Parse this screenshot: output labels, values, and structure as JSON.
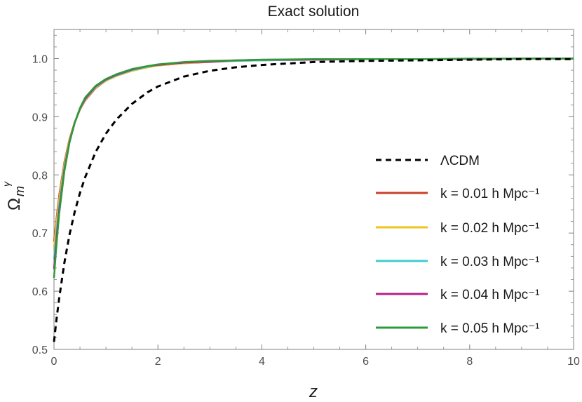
{
  "chart_data": {
    "type": "line",
    "title": "Exact solution",
    "xlabel": "z",
    "ylabel": "Ωmγ",
    "ylabel_parts": {
      "base": "Ω",
      "sub": "m",
      "sup": "γ"
    },
    "xlim": [
      0,
      10
    ],
    "ylim": [
      0.5,
      1.05
    ],
    "x_ticks": [
      0,
      2,
      4,
      6,
      8,
      10
    ],
    "x_tick_labels": [
      "0",
      "2",
      "4",
      "6",
      "8",
      "10"
    ],
    "y_ticks": [
      0.5,
      0.6,
      0.7,
      0.8,
      0.9,
      1.0
    ],
    "y_tick_labels": [
      "0.5",
      "0.6",
      "0.7",
      "0.8",
      "0.9",
      "1.0"
    ],
    "grid": false,
    "legend_position": "right",
    "x": [
      0,
      0.05,
      0.1,
      0.2,
      0.3,
      0.4,
      0.5,
      0.6,
      0.8,
      1.0,
      1.2,
      1.5,
      1.8,
      2.0,
      2.5,
      3.0,
      3.5,
      4.0,
      5.0,
      6.0,
      7.0,
      8.0,
      9.0,
      10.0
    ],
    "series": [
      {
        "name": "ΛCDM",
        "color": "#000000",
        "dashed": true,
        "values": [
          0.513,
          0.553,
          0.588,
          0.649,
          0.698,
          0.737,
          0.769,
          0.796,
          0.839,
          0.871,
          0.895,
          0.922,
          0.942,
          0.952,
          0.969,
          0.979,
          0.985,
          0.989,
          0.994,
          0.996,
          0.997,
          0.998,
          0.999,
          0.999
        ]
      },
      {
        "name": "k = 0.01 h Mpc⁻¹",
        "color": "#c8412b",
        "dashed": false,
        "values": [
          0.685,
          0.726,
          0.765,
          0.822,
          0.862,
          0.891,
          0.912,
          0.928,
          0.949,
          0.962,
          0.97,
          0.979,
          0.985,
          0.988,
          0.992,
          0.994,
          0.996,
          0.997,
          0.998,
          0.999,
          0.999,
          0.999,
          1.0,
          1.0
        ]
      },
      {
        "name": "k = 0.02 h Mpc⁻¹",
        "color": "#f0c419",
        "dashed": false,
        "values": [
          0.675,
          0.719,
          0.758,
          0.818,
          0.86,
          0.89,
          0.912,
          0.929,
          0.95,
          0.962,
          0.97,
          0.979,
          0.985,
          0.988,
          0.992,
          0.995,
          0.996,
          0.997,
          0.998,
          0.999,
          0.999,
          0.999,
          1.0,
          1.0
        ]
      },
      {
        "name": "k = 0.03 h Mpc⁻¹",
        "color": "#3fcccc",
        "dashed": false,
        "values": [
          0.655,
          0.704,
          0.748,
          0.813,
          0.858,
          0.89,
          0.913,
          0.93,
          0.951,
          0.963,
          0.971,
          0.98,
          0.986,
          0.989,
          0.993,
          0.995,
          0.996,
          0.997,
          0.998,
          0.999,
          0.999,
          0.999,
          1.0,
          1.0
        ]
      },
      {
        "name": "k = 0.04 h Mpc⁻¹",
        "color": "#b5208a",
        "dashed": false,
        "values": [
          0.638,
          0.692,
          0.74,
          0.809,
          0.857,
          0.89,
          0.914,
          0.931,
          0.952,
          0.964,
          0.972,
          0.981,
          0.987,
          0.989,
          0.993,
          0.995,
          0.997,
          0.998,
          0.998,
          0.999,
          0.999,
          0.999,
          1.0,
          1.0
        ]
      },
      {
        "name": "k = 0.05 h Mpc⁻¹",
        "color": "#2e9a3a",
        "dashed": false,
        "values": [
          0.623,
          0.682,
          0.733,
          0.806,
          0.856,
          0.89,
          0.915,
          0.933,
          0.953,
          0.965,
          0.973,
          0.982,
          0.987,
          0.99,
          0.994,
          0.996,
          0.997,
          0.998,
          0.999,
          0.999,
          0.999,
          1.0,
          1.0,
          1.0
        ]
      }
    ]
  }
}
